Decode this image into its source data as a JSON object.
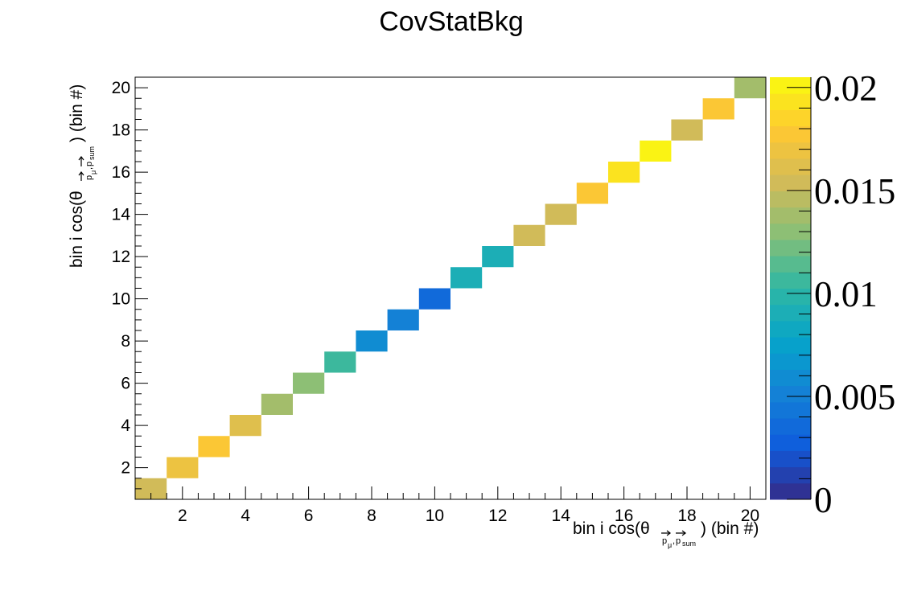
{
  "chart_data": {
    "type": "heatmap",
    "title": "CovStatBkg",
    "xlabel": {
      "pre": "bin i cos(θ",
      "sub1": "p",
      "sub1a": "μ",
      "sub2": "p",
      "sub2a": "sum",
      "post": ") (bin #)"
    },
    "ylabel": {
      "pre": "bin i cos(θ",
      "sub1": "p",
      "sub1a": "μ",
      "sub2": "p",
      "sub2a": "sum",
      "post": ") (bin #)"
    },
    "xlim": [
      0.5,
      20.5
    ],
    "ylim": [
      0.5,
      20.5
    ],
    "xticks": [
      "2",
      "4",
      "6",
      "8",
      "10",
      "12",
      "14",
      "16",
      "18",
      "20"
    ],
    "yticks": [
      "2",
      "4",
      "6",
      "8",
      "10",
      "12",
      "14",
      "16",
      "18",
      "20"
    ],
    "zlim": [
      0,
      0.0205
    ],
    "zticks": [
      "0",
      "0.005",
      "0.01",
      "0.015",
      "0.02"
    ],
    "grid": false,
    "colorbar": "right",
    "cells": [
      {
        "x": 1,
        "y": 1,
        "z": 0.0155
      },
      {
        "x": 2,
        "y": 2,
        "z": 0.017
      },
      {
        "x": 3,
        "y": 3,
        "z": 0.018
      },
      {
        "x": 4,
        "y": 4,
        "z": 0.016
      },
      {
        "x": 5,
        "y": 5,
        "z": 0.014
      },
      {
        "x": 6,
        "y": 6,
        "z": 0.013
      },
      {
        "x": 7,
        "y": 7,
        "z": 0.011
      },
      {
        "x": 8,
        "y": 8,
        "z": 0.006
      },
      {
        "x": 9,
        "y": 9,
        "z": 0.005
      },
      {
        "x": 10,
        "y": 10,
        "z": 0.0035
      },
      {
        "x": 11,
        "y": 11,
        "z": 0.009
      },
      {
        "x": 12,
        "y": 12,
        "z": 0.009
      },
      {
        "x": 13,
        "y": 13,
        "z": 0.015
      },
      {
        "x": 14,
        "y": 14,
        "z": 0.015
      },
      {
        "x": 15,
        "y": 15,
        "z": 0.018
      },
      {
        "x": 16,
        "y": 16,
        "z": 0.0195
      },
      {
        "x": 17,
        "y": 17,
        "z": 0.02
      },
      {
        "x": 18,
        "y": 18,
        "z": 0.015
      },
      {
        "x": 19,
        "y": 19,
        "z": 0.018
      },
      {
        "x": 20,
        "y": 20,
        "z": 0.014
      }
    ]
  }
}
